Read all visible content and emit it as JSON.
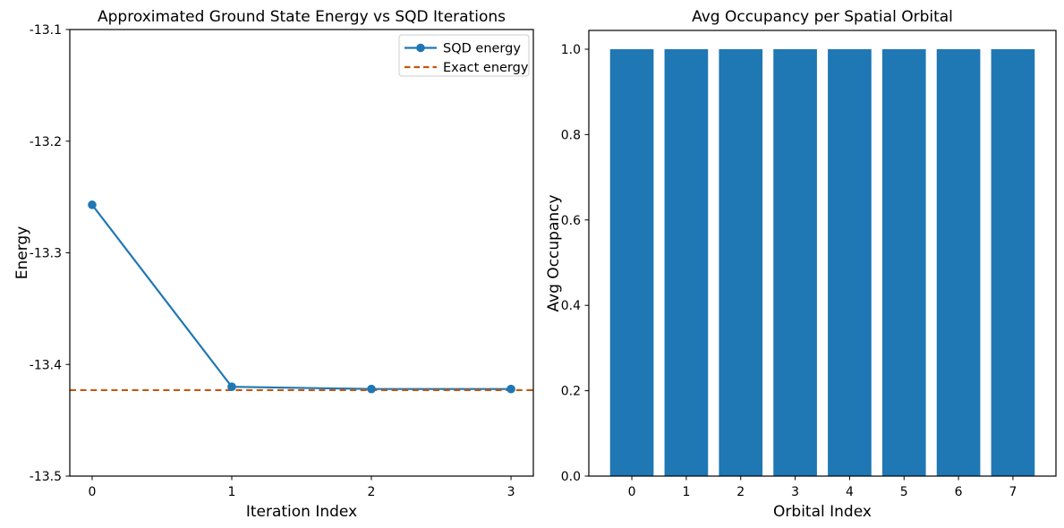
{
  "figure": {
    "background": "#ffffff",
    "text_color": "#000000",
    "spine_color": "#000000"
  },
  "chart_data": [
    {
      "type": "line",
      "title": "Approximated Ground State Energy vs SQD Iterations",
      "xlabel": "Iteration Index",
      "ylabel": "Energy",
      "x": [
        0,
        1,
        2,
        3
      ],
      "series": [
        {
          "name": "SQD energy",
          "style": "solid-line-circle-markers",
          "color": "#1f77b4",
          "values": [
            -13.257,
            -13.42,
            -13.422,
            -13.422
          ]
        },
        {
          "name": "Exact energy",
          "style": "dashed-horizontal-line",
          "color": "#c5570e",
          "value": -13.423
        }
      ],
      "xlim": [
        -0.16,
        3.16
      ],
      "ylim": [
        -13.5,
        -13.1
      ],
      "xticks": [
        0,
        1,
        2,
        3
      ],
      "xticklabels": [
        "0",
        "1",
        "2",
        "3"
      ],
      "yticks": [
        -13.1,
        -13.2,
        -13.3,
        -13.4,
        -13.5
      ],
      "yticklabels": [
        "-13.1",
        "-13.2",
        "-13.3",
        "-13.4",
        "-13.5"
      ],
      "legend": {
        "position": "upper right",
        "entries": [
          "SQD energy",
          "Exact energy"
        ]
      },
      "grid": false
    },
    {
      "type": "bar",
      "title": "Avg Occupancy per Spatial Orbital",
      "xlabel": "Orbital Index",
      "ylabel": "Avg Occupancy",
      "categories": [
        "0",
        "1",
        "2",
        "3",
        "4",
        "5",
        "6",
        "7"
      ],
      "values": [
        1.0,
        1.0,
        1.0,
        1.0,
        1.0,
        1.0,
        1.0,
        1.0
      ],
      "bar_color": "#1f77b4",
      "bar_width_data_units": 0.8,
      "xlim": [
        -0.79,
        7.79
      ],
      "ylim": [
        0,
        1.044
      ],
      "yticks": [
        0.0,
        0.2,
        0.4,
        0.6,
        0.8,
        1.0
      ],
      "yticklabels": [
        "0.0",
        "0.2",
        "0.4",
        "0.6",
        "0.8",
        "1.0"
      ],
      "grid": false,
      "legend_position": "none"
    }
  ]
}
